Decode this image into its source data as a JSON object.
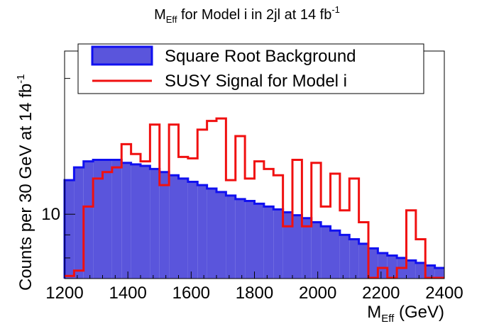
{
  "chart_data": {
    "type": "histogram",
    "title": {
      "base": "M",
      "sub": "Eff",
      "mid": " for Model i in 2jl at 14 fb",
      "sup": "-1"
    },
    "xlabel": {
      "base": "M",
      "sub": "Eff",
      "rest": " (GeV)"
    },
    "ylabel": {
      "text": "Counts per 30 GeV at 14 fb",
      "sup": "-1"
    },
    "xlim": [
      1200,
      2400
    ],
    "ylim": [
      7.2,
      23
    ],
    "yscale": "log",
    "bin_width": 30,
    "x_ticks": [
      "1200",
      "1400",
      "1600",
      "1800",
      "2000",
      "2200",
      "2400"
    ],
    "y_tick_labels": [
      {
        "value": 10,
        "label": "10"
      }
    ],
    "legend": {
      "position": "top",
      "entries": [
        {
          "label": "Square Root Background",
          "style": "filled"
        },
        {
          "label": "SUSY Signal for Model i",
          "style": "line"
        }
      ]
    },
    "series": [
      {
        "name": "Square Root Background",
        "style": "filled",
        "fill": "#5a55dc",
        "stroke": "#1010f0",
        "bin_edges_start": 1200,
        "values": [
          11.9,
          12.7,
          13.1,
          13.2,
          13.2,
          13.2,
          13.0,
          12.9,
          12.8,
          12.6,
          12.4,
          12.2,
          12.0,
          11.8,
          11.6,
          11.4,
          11.2,
          11.0,
          10.8,
          10.7,
          10.55,
          10.4,
          10.25,
          10.1,
          9.95,
          9.8,
          9.6,
          9.4,
          9.2,
          9.0,
          8.8,
          8.6,
          8.4,
          8.2,
          8.1,
          8.0,
          7.9,
          7.8,
          7.7,
          7.6
        ]
      },
      {
        "name": "SUSY Signal for Model i",
        "style": "line",
        "stroke": "#f01010",
        "bin_edges_start": 1200,
        "values": [
          7.3,
          7.5,
          10.4,
          12.0,
          12.4,
          12.7,
          14.3,
          13.6,
          13.1,
          15.8,
          11.6,
          15.8,
          13.4,
          13.3,
          15.4,
          16.1,
          16.3,
          11.9,
          14.9,
          12.0,
          13.1,
          12.6,
          12.2,
          9.4,
          13.2,
          9.4,
          13.0,
          10.4,
          12.3,
          10.2,
          12.0,
          9.6,
          7.2,
          7.6,
          7.2,
          7.6,
          10.2,
          8.8,
          7.2,
          7.2
        ]
      }
    ]
  }
}
